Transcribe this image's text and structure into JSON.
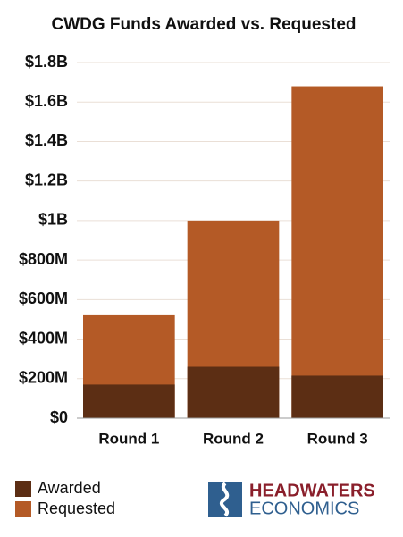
{
  "chart_data": {
    "type": "bar",
    "barmode": "overlay",
    "title": "CWDG Funds Awarded vs. Requested",
    "categories": [
      "Round 1",
      "Round 2",
      "Round 3"
    ],
    "series": [
      {
        "name": "Awarded",
        "color": "#5c2e14",
        "values": [
          170000000,
          260000000,
          215000000
        ]
      },
      {
        "name": "Requested",
        "color": "#b45a26",
        "values": [
          525000000,
          1000000000,
          1680000000
        ]
      }
    ],
    "ylim": [
      0,
      1800000000
    ],
    "yticks": [
      {
        "value": 0,
        "label": "$0"
      },
      {
        "value": 200000000,
        "label": "$200M"
      },
      {
        "value": 400000000,
        "label": "$400M"
      },
      {
        "value": 600000000,
        "label": "$600M"
      },
      {
        "value": 800000000,
        "label": "$800M"
      },
      {
        "value": 1000000000,
        "label": "$1B"
      },
      {
        "value": 1200000000,
        "label": "$1.2B"
      },
      {
        "value": 1400000000,
        "label": "$1.4B"
      },
      {
        "value": 1600000000,
        "label": "$1.6B"
      },
      {
        "value": 1800000000,
        "label": "$1.8B"
      }
    ],
    "grid": true,
    "legend": "bottom-left"
  },
  "logo": {
    "line1": "HEADWATERS",
    "line2": "ECONOMICS"
  }
}
